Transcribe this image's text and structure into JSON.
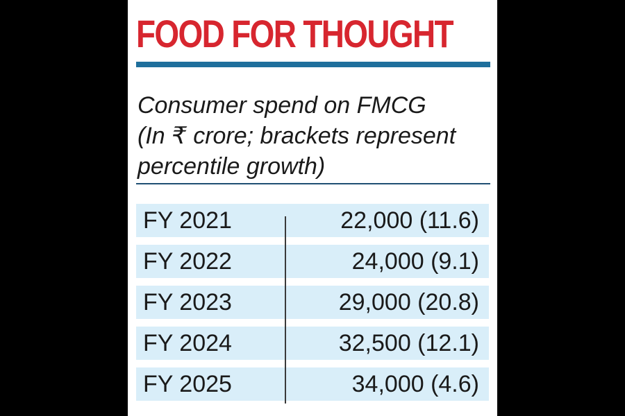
{
  "header": {
    "title": "FOOD FOR THOUGHT"
  },
  "subtitle": {
    "line1": "Consumer spend on FMCG",
    "line2": "(In ₹ crore; brackets represent",
    "line3": "percentile growth)"
  },
  "colors": {
    "title": "#d7262f",
    "rule": "#1f6f9c",
    "row_fill": "#d9eef9",
    "background_outer": "#000000"
  },
  "chart_data": {
    "type": "table",
    "columns": [
      "",
      ""
    ],
    "rows": [
      {
        "year": "FY 2021",
        "display": "22,000 (11.6)",
        "value": 22000,
        "growth": 11.6
      },
      {
        "year": "FY 2022",
        "display": "24,000 (9.1)",
        "value": 24000,
        "growth": 9.1
      },
      {
        "year": "FY 2023",
        "display": "29,000 (20.8)",
        "value": 29000,
        "growth": 20.8
      },
      {
        "year": "FY 2024",
        "display": "32,500 (12.1)",
        "value": 32500,
        "growth": 12.1
      },
      {
        "year": "FY 2025",
        "display": "34,000 (4.6)",
        "value": 34000,
        "growth": 4.6
      }
    ]
  }
}
